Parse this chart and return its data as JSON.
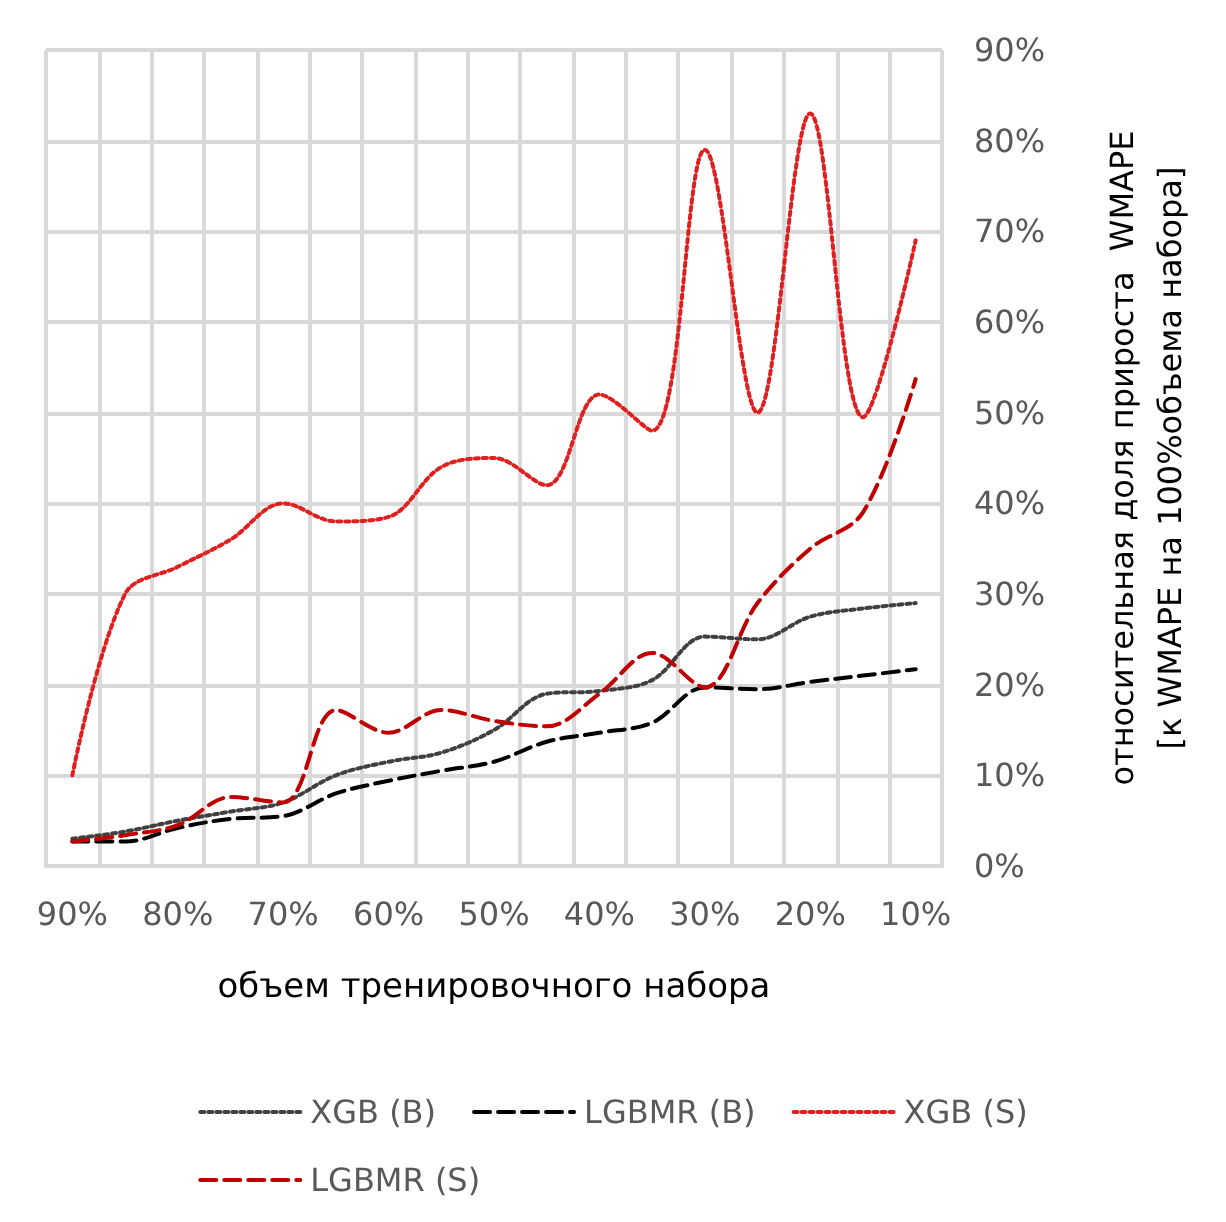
{
  "chart_data": {
    "type": "line",
    "xlabel": "объем тренировочного набора",
    "ylabel": "относительная доля прироста  WMAPE\n[к WMAPE на 100%объема набора]",
    "categories": [
      "90%",
      null,
      "80%",
      null,
      "70%",
      null,
      "60%",
      null,
      "50%",
      null,
      "40%",
      null,
      "30%",
      null,
      "20%",
      null,
      "10%"
    ],
    "ylim": [
      0,
      90
    ],
    "yticks": [
      {
        "value": 0,
        "label": "0%"
      },
      {
        "value": 10,
        "label": "10%"
      },
      {
        "value": 20,
        "label": "20%"
      },
      {
        "value": 30,
        "label": "30%"
      },
      {
        "value": 40,
        "label": "40%"
      },
      {
        "value": 50,
        "label": "50%"
      },
      {
        "value": 60,
        "label": "60%"
      },
      {
        "value": 70,
        "label": "70%"
      },
      {
        "value": 80,
        "label": "80%"
      },
      {
        "value": 90,
        "label": "90%"
      }
    ],
    "grid": true,
    "legend": "bottom",
    "marker": "none",
    "series": [
      {
        "name": "XGB (B)",
        "color": "#404040",
        "line_style": "dotted",
        "values": [
          3,
          3.8,
          5,
          6,
          7,
          10,
          11.5,
          12.5,
          15,
          19,
          19.3,
          20.5,
          25.3,
          25,
          27.5,
          28.4,
          29
        ]
      },
      {
        "name": "LGBMR (B)",
        "color": "#000000",
        "line_style": "dashed",
        "values": [
          2.7,
          2.7,
          4.2,
          5.2,
          5.5,
          8,
          9.4,
          10.5,
          11.5,
          13.7,
          14.7,
          15.8,
          19.7,
          19.5,
          20.3,
          21,
          21.7
        ]
      },
      {
        "name": "XGB (S)",
        "color": "#e02020",
        "line_style": "dotted",
        "values": [
          10,
          30,
          33,
          36,
          40,
          38,
          38.5,
          44,
          45,
          42,
          52,
          48,
          79,
          50,
          83,
          49.5,
          69
        ]
      },
      {
        "name": "LGBMR (S)",
        "color": "#c00000",
        "line_style": "dashed",
        "values": [
          2.7,
          3.4,
          4.5,
          7.6,
          7,
          17.2,
          14.7,
          17.2,
          16,
          15.4,
          19,
          23.5,
          19.7,
          29,
          35,
          39,
          53.7
        ]
      }
    ]
  }
}
